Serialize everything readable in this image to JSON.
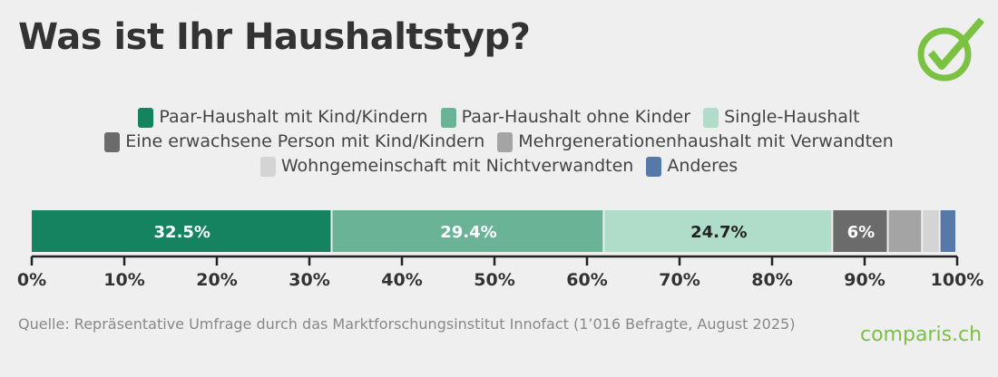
{
  "title": "Was ist Ihr Haushaltstyp?",
  "source": "Quelle: Repräsentative Umfrage durch das Marktforschungsinstitut Innofact (1’016 Befragte, August 2025)",
  "brand": "comparis.ch",
  "logo_icon": "check-circle-icon",
  "chart_data": {
    "type": "bar",
    "stacked": true,
    "orientation": "horizontal",
    "xlim": [
      0,
      100
    ],
    "x_ticks": [
      "0%",
      "10%",
      "20%",
      "30%",
      "40%",
      "50%",
      "60%",
      "70%",
      "80%",
      "90%",
      "100%"
    ],
    "legend_position": "top",
    "series": [
      {
        "name": "Paar-Haushalt mit Kind/Kindern",
        "value": 32.5,
        "label": "32.5%",
        "color": "#168360",
        "label_color": "#ffffff"
      },
      {
        "name": "Paar-Haushalt ohne Kinder",
        "value": 29.4,
        "label": "29.4%",
        "color": "#6ab396",
        "label_color": "#ffffff"
      },
      {
        "name": "Single-Haushalt",
        "value": 24.7,
        "label": "24.7%",
        "color": "#b0dcca",
        "label_color": "#222222"
      },
      {
        "name": "Eine erwachsene Person mit Kind/Kindern",
        "value": 6,
        "label": "6%",
        "color": "#6b6b6b",
        "label_color": "#ffffff"
      },
      {
        "name": "Mehrgenerationenhaushalt mit Verwandten",
        "value": 3.7,
        "label": "",
        "color": "#a4a4a4",
        "label_color": "#ffffff"
      },
      {
        "name": "Wohngemeinschaft mit Nichtverwandten",
        "value": 1.9,
        "label": "",
        "color": "#d4d4d4",
        "label_color": "#222222"
      },
      {
        "name": "Anderes",
        "value": 1.8,
        "label": "",
        "color": "#5779a8",
        "label_color": "#ffffff"
      }
    ],
    "legend_rows": [
      [
        0,
        1,
        2
      ],
      [
        3,
        4
      ],
      [
        5,
        6
      ]
    ]
  }
}
